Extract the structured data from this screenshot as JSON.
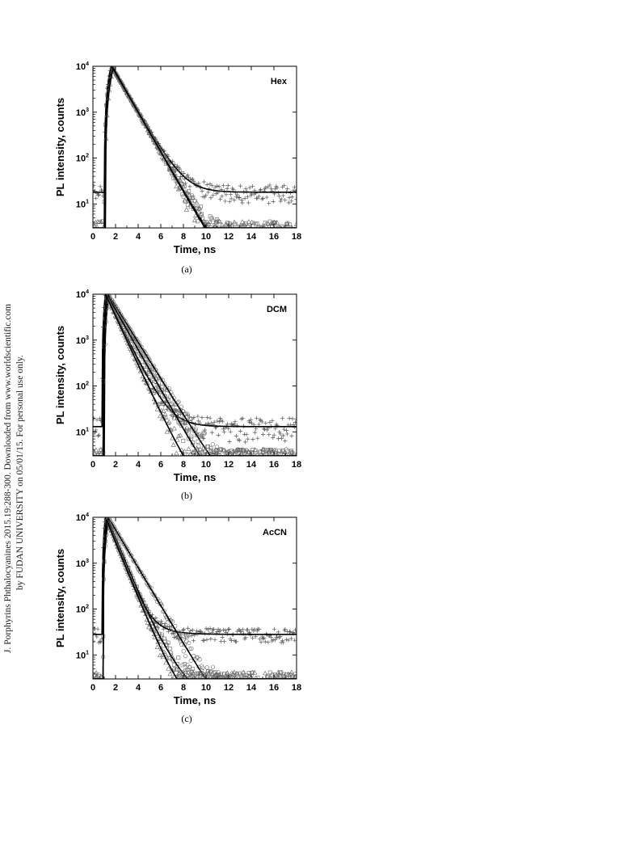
{
  "sidebar": {
    "line1": "J. Porphyrins Phthalocyanines 2015.19:288-300. Downloaded from www.worldscientific.com",
    "line2": "by FUDAN UNIVERSITY on 05/01/15. For personal use only."
  },
  "chart_data": [
    {
      "type": "scatter",
      "panel_label": "Hex",
      "caption": "(a)",
      "xlabel": "Time, ns",
      "ylabel": "PL intensity, counts",
      "yscale": "log",
      "xlim": [
        0,
        18
      ],
      "ylim": [
        3,
        10000
      ],
      "xticks": [
        0,
        2,
        4,
        6,
        8,
        10,
        12,
        14,
        16,
        18
      ],
      "yticks": [
        {
          "mant": "10",
          "exp": "1",
          "value": 10
        },
        {
          "mant": "10",
          "exp": "2",
          "value": 100
        },
        {
          "mant": "10",
          "exp": "3",
          "value": 1000
        },
        {
          "mant": "10",
          "exp": "4",
          "value": 10000
        }
      ],
      "series": [
        {
          "marker": "plus",
          "onset": 1.0,
          "peak_x": 1.6,
          "peak_y": 10000,
          "tau1": 1.05,
          "tau2": 1.05,
          "a2": 0,
          "bg": 18
        },
        {
          "marker": "square",
          "onset": 1.0,
          "peak_x": 1.7,
          "peak_y": 9500,
          "tau1": 1.02,
          "tau2": 1.02,
          "a2": 0,
          "bg": 0.3
        },
        {
          "marker": "triangle",
          "onset": 1.1,
          "peak_x": 1.8,
          "peak_y": 9000,
          "tau1": 1.0,
          "tau2": 1.0,
          "a2": 0,
          "bg": 0.3
        }
      ]
    },
    {
      "type": "scatter",
      "panel_label": "DCM",
      "caption": "(b)",
      "xlabel": "Time, ns",
      "ylabel": "PL intensity, counts",
      "yscale": "log",
      "xlim": [
        0,
        18
      ],
      "ylim": [
        3,
        10000
      ],
      "xticks": [
        0,
        2,
        4,
        6,
        8,
        10,
        12,
        14,
        16,
        18
      ],
      "yticks": [
        {
          "mant": "10",
          "exp": "1",
          "value": 10
        },
        {
          "mant": "10",
          "exp": "2",
          "value": 100
        },
        {
          "mant": "10",
          "exp": "3",
          "value": 1000
        },
        {
          "mant": "10",
          "exp": "4",
          "value": 10000
        }
      ],
      "series": [
        {
          "marker": "plus",
          "onset": 0.8,
          "peak_x": 1.1,
          "peak_y": 10000,
          "tau1": 0.85,
          "tau2": 1.3,
          "a2": 0.05,
          "bg": 13
        },
        {
          "marker": "circle",
          "onset": 1.0,
          "peak_x": 1.4,
          "peak_y": 9500,
          "tau1": 1.1,
          "tau2": 1.1,
          "a2": 0,
          "bg": 0.3
        },
        {
          "marker": "square",
          "onset": 0.9,
          "peak_x": 1.3,
          "peak_y": 9200,
          "tau1": 1.0,
          "tau2": 1.0,
          "a2": 0,
          "bg": 0.3
        },
        {
          "marker": "triangle",
          "onset": 0.9,
          "peak_x": 1.2,
          "peak_y": 9000,
          "tau1": 0.8,
          "tau2": 1.2,
          "a2": 0.03,
          "bg": 0.3
        }
      ]
    },
    {
      "type": "scatter",
      "panel_label": "AcCN",
      "caption": "(c)",
      "xlabel": "Time, ns",
      "ylabel": "PL intensity, counts",
      "yscale": "log",
      "xlim": [
        0,
        18
      ],
      "ylim": [
        3,
        10000
      ],
      "xticks": [
        0,
        2,
        4,
        6,
        8,
        10,
        12,
        14,
        16,
        18
      ],
      "yticks": [
        {
          "mant": "10",
          "exp": "1",
          "value": 10
        },
        {
          "mant": "10",
          "exp": "2",
          "value": 100
        },
        {
          "mant": "10",
          "exp": "3",
          "value": 1000
        },
        {
          "mant": "10",
          "exp": "4",
          "value": 10000
        }
      ],
      "series": [
        {
          "marker": "plus",
          "onset": 0.8,
          "peak_x": 1.1,
          "peak_y": 10000,
          "tau1": 0.7,
          "tau2": 1.6,
          "a2": 0.015,
          "bg": 28
        },
        {
          "marker": "circle",
          "onset": 0.9,
          "peak_x": 1.4,
          "peak_y": 9500,
          "tau1": 1.05,
          "tau2": 1.05,
          "a2": 0,
          "bg": 0.3
        },
        {
          "marker": "square",
          "onset": 0.9,
          "peak_x": 1.3,
          "peak_y": 9200,
          "tau1": 0.72,
          "tau2": 1.6,
          "a2": 0.02,
          "bg": 0.3
        },
        {
          "marker": "triangle",
          "onset": 0.9,
          "peak_x": 1.2,
          "peak_y": 9000,
          "tau1": 0.7,
          "tau2": 1.3,
          "a2": 0.02,
          "bg": 0.3
        }
      ]
    }
  ]
}
